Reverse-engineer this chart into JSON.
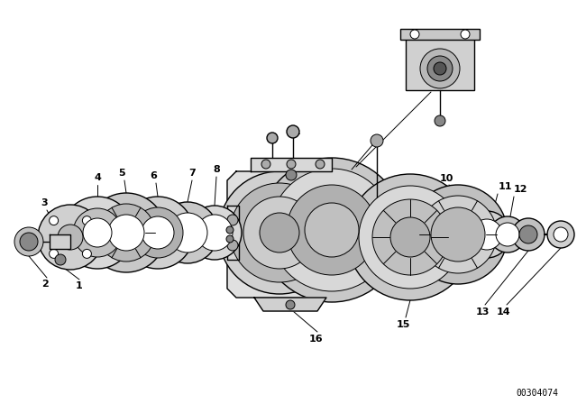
{
  "title": "",
  "background_color": "#ffffff",
  "line_color": "#000000",
  "catalog_number": "00304074",
  "fig_width": 6.4,
  "fig_height": 4.48,
  "dpi": 100
}
